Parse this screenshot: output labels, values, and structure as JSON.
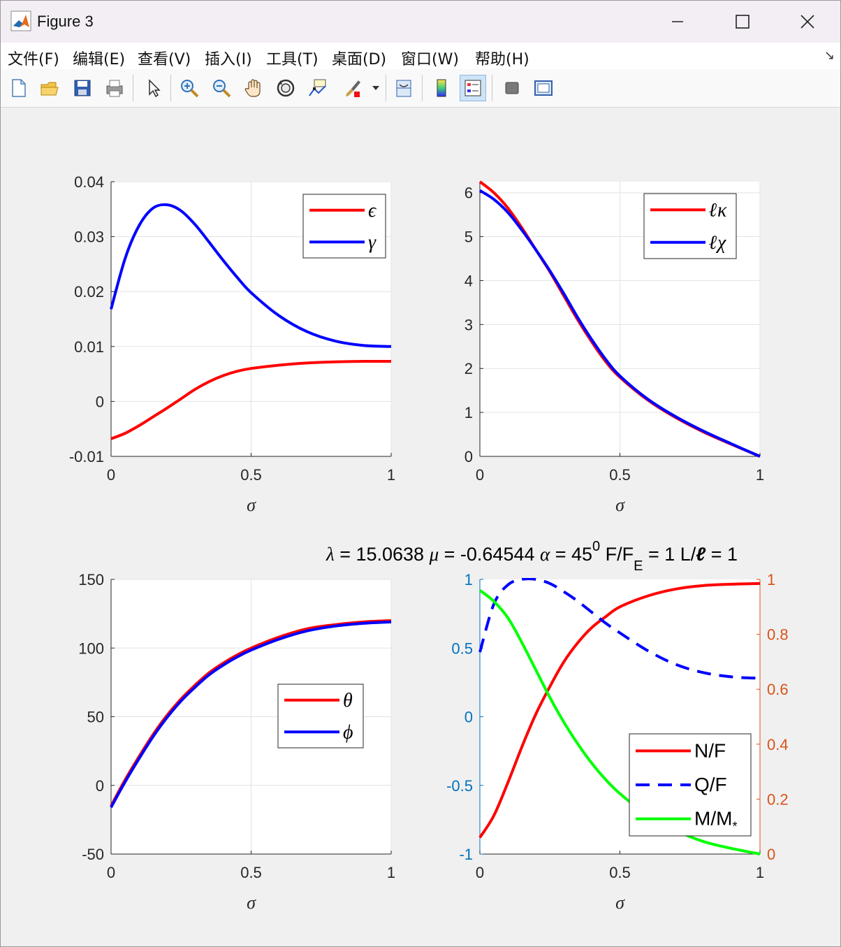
{
  "window": {
    "title": "Figure 3"
  },
  "menu": [
    "文件(F)",
    "编辑(E)",
    "查看(V)",
    "插入(I)",
    "工具(T)",
    "桌面(D)",
    "窗口(W)",
    "帮助(H)"
  ],
  "toolbar_icons": [
    "new-figure-icon",
    "open-file-icon",
    "save-icon",
    "print-icon",
    "pointer-icon",
    "zoom-in-icon",
    "zoom-out-icon",
    "pan-icon",
    "rotate-icon",
    "data-cursor-icon",
    "brush-icon",
    "brush-dropdown-icon",
    "link-plot-icon",
    "colorbar-icon",
    "legend-icon",
    "hide-plot-tools-icon",
    "show-plot-tools-icon"
  ],
  "colors": {
    "red": "#ff0000",
    "blue": "#0000ff",
    "green": "#00ff00",
    "left_axis": "#0072bd",
    "right_axis": "#d95319"
  },
  "figure_title": {
    "lambda_sym": "λ",
    "lambda_text": " = 15.0638  ",
    "mu_sym": "μ",
    "mu_text": " = -0.64544  ",
    "alpha_sym": "α",
    "alpha_text": " = 45",
    "alpha_sup": "0",
    "f_text": "  F/F",
    "f_sub": "E",
    "f_val": " = 1  L/",
    "ell": "ℓ",
    "l_val": " = 1"
  },
  "chart_data": [
    {
      "type": "line",
      "panel": "top-left",
      "xlabel": "σ",
      "xlim": [
        0,
        1
      ],
      "ylim": [
        -0.01,
        0.04
      ],
      "xticks": [
        "0",
        "0.5",
        "1"
      ],
      "yticks": [
        "-0.01",
        "0",
        "0.01",
        "0.02",
        "0.03",
        "0.04"
      ],
      "grid": true,
      "legend_position": "top-right",
      "series": [
        {
          "name": "ϵ",
          "color": "#ff0000",
          "x": [
            0,
            0.05,
            0.1,
            0.15,
            0.2,
            0.25,
            0.3,
            0.35,
            0.4,
            0.45,
            0.5,
            0.6,
            0.7,
            0.8,
            0.9,
            1.0
          ],
          "y": [
            -0.0068,
            -0.0058,
            -0.0044,
            -0.0028,
            -0.0012,
            0.0005,
            0.0022,
            0.0036,
            0.0047,
            0.0055,
            0.006,
            0.0066,
            0.007,
            0.0072,
            0.0073,
            0.0073
          ]
        },
        {
          "name": "γ",
          "color": "#0000ff",
          "x": [
            0,
            0.05,
            0.1,
            0.15,
            0.2,
            0.25,
            0.3,
            0.35,
            0.4,
            0.45,
            0.5,
            0.6,
            0.7,
            0.8,
            0.9,
            1.0
          ],
          "y": [
            0.0168,
            0.026,
            0.032,
            0.0352,
            0.0358,
            0.0347,
            0.0322,
            0.029,
            0.0257,
            0.0226,
            0.0198,
            0.0156,
            0.0127,
            0.011,
            0.0102,
            0.01
          ]
        }
      ]
    },
    {
      "type": "line",
      "panel": "top-right",
      "xlabel": "σ",
      "xlim": [
        0,
        1
      ],
      "ylim": [
        0,
        6.25
      ],
      "xticks": [
        "0",
        "0.5",
        "1"
      ],
      "yticks": [
        "0",
        "1",
        "2",
        "3",
        "4",
        "5",
        "6"
      ],
      "grid": true,
      "legend_position": "top-right",
      "series": [
        {
          "name": "ℓκ",
          "color": "#ff0000",
          "x": [
            0,
            0.05,
            0.1,
            0.15,
            0.2,
            0.25,
            0.3,
            0.35,
            0.4,
            0.45,
            0.5,
            0.6,
            0.7,
            0.8,
            0.9,
            1.0
          ],
          "y": [
            6.25,
            6.0,
            5.65,
            5.2,
            4.7,
            4.2,
            3.65,
            3.1,
            2.6,
            2.15,
            1.8,
            1.28,
            0.88,
            0.55,
            0.27,
            0.0
          ]
        },
        {
          "name": "ℓχ",
          "color": "#0000ff",
          "x": [
            0,
            0.05,
            0.1,
            0.15,
            0.2,
            0.25,
            0.3,
            0.35,
            0.4,
            0.45,
            0.5,
            0.6,
            0.7,
            0.8,
            0.9,
            1.0
          ],
          "y": [
            6.05,
            5.85,
            5.55,
            5.15,
            4.7,
            4.22,
            3.7,
            3.15,
            2.65,
            2.2,
            1.83,
            1.3,
            0.9,
            0.57,
            0.28,
            0.0
          ]
        }
      ]
    },
    {
      "type": "line",
      "panel": "bottom-left",
      "xlabel": "σ",
      "xlim": [
        0,
        1
      ],
      "ylim": [
        -50,
        150
      ],
      "xticks": [
        "0",
        "0.5",
        "1"
      ],
      "yticks": [
        "-50",
        "0",
        "50",
        "100",
        "150"
      ],
      "grid": true,
      "legend_position": "center-right",
      "series": [
        {
          "name": "θ",
          "color": "#ff0000",
          "x": [
            0,
            0.05,
            0.1,
            0.15,
            0.2,
            0.25,
            0.3,
            0.35,
            0.4,
            0.45,
            0.5,
            0.6,
            0.7,
            0.8,
            0.9,
            1.0
          ],
          "y": [
            -15,
            4,
            21,
            37,
            51,
            63,
            73,
            82,
            89,
            95,
            100,
            108,
            114,
            117,
            119,
            120
          ]
        },
        {
          "name": "ϕ",
          "color": "#0000ff",
          "x": [
            0,
            0.05,
            0.1,
            0.15,
            0.2,
            0.25,
            0.3,
            0.35,
            0.4,
            0.45,
            0.5,
            0.6,
            0.7,
            0.8,
            0.9,
            1.0
          ],
          "y": [
            -16,
            2.5,
            19.5,
            35.5,
            49.5,
            61.5,
            71.5,
            80.5,
            87.5,
            93.5,
            98.5,
            106.5,
            112.5,
            116,
            118,
            119
          ]
        }
      ]
    },
    {
      "type": "line",
      "panel": "bottom-right",
      "xlabel": "σ",
      "xlim": [
        0,
        1
      ],
      "ylim_left": [
        -1,
        1
      ],
      "ylim_right": [
        0,
        1
      ],
      "xticks": [
        "0",
        "0.5",
        "1"
      ],
      "yticks_left": [
        "-1",
        "-0.5",
        "0",
        "0.5",
        "1"
      ],
      "yticks_right": [
        "0",
        "0.2",
        "0.4",
        "0.6",
        "0.8",
        "1"
      ],
      "grid": false,
      "legend_position": "bottom-right",
      "series": [
        {
          "name": "N/F",
          "color": "#ff0000",
          "axis": "left",
          "style": "solid",
          "x": [
            0,
            0.05,
            0.1,
            0.15,
            0.2,
            0.25,
            0.3,
            0.35,
            0.4,
            0.45,
            0.5,
            0.6,
            0.7,
            0.8,
            0.9,
            1.0
          ],
          "y": [
            -0.88,
            -0.72,
            -0.48,
            -0.22,
            0.02,
            0.22,
            0.4,
            0.54,
            0.65,
            0.73,
            0.8,
            0.88,
            0.93,
            0.955,
            0.965,
            0.97
          ]
        },
        {
          "name": "Q/F",
          "color": "#0000ff",
          "axis": "left",
          "style": "dashed",
          "x": [
            0,
            0.05,
            0.1,
            0.15,
            0.2,
            0.25,
            0.3,
            0.35,
            0.4,
            0.45,
            0.5,
            0.6,
            0.7,
            0.8,
            0.9,
            1.0
          ],
          "y": [
            0.47,
            0.82,
            0.96,
            1.0,
            1.0,
            0.97,
            0.91,
            0.84,
            0.76,
            0.68,
            0.61,
            0.48,
            0.38,
            0.32,
            0.29,
            0.28
          ]
        },
        {
          "name": "M/M",
          "name_sub": "*",
          "color": "#00ff00",
          "axis": "right",
          "style": "solid",
          "x": [
            0,
            0.05,
            0.1,
            0.15,
            0.2,
            0.25,
            0.3,
            0.35,
            0.4,
            0.45,
            0.5,
            0.6,
            0.7,
            0.8,
            0.9,
            1.0
          ],
          "y": [
            0.96,
            0.92,
            0.86,
            0.77,
            0.67,
            0.57,
            0.48,
            0.4,
            0.33,
            0.27,
            0.22,
            0.14,
            0.085,
            0.045,
            0.02,
            0.0
          ]
        }
      ]
    }
  ]
}
